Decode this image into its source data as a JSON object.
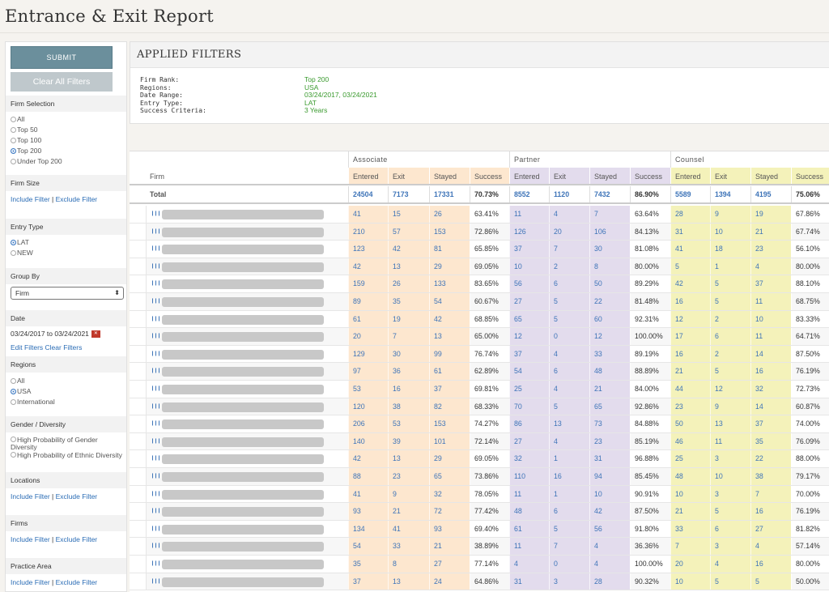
{
  "page": {
    "title": "Entrance & Exit Report"
  },
  "sidebar": {
    "submit_label": "SUBMIT",
    "clear_label": "Clear All Filters",
    "firm_selection": {
      "title": "Firm Selection",
      "options": [
        "All",
        "Top 50",
        "Top 100",
        "Top 200",
        "Under Top 200"
      ],
      "selected": "Top 200"
    },
    "firm_size": {
      "title": "Firm Size"
    },
    "include_filter": "Include Filter",
    "exclude_filter": "Exclude Filter",
    "separator": "|",
    "entry_type": {
      "title": "Entry Type",
      "options": [
        "LAT",
        "NEW"
      ],
      "selected": "LAT"
    },
    "group_by": {
      "title": "Group By",
      "value": "Firm"
    },
    "date": {
      "title": "Date",
      "range": "03/24/2017 to 03/24/2021",
      "edit_filters": "Edit Filters",
      "clear_filters": "Clear Filters"
    },
    "regions": {
      "title": "Regions",
      "options": [
        "All",
        "USA",
        "International"
      ],
      "selected": "USA"
    },
    "gender": {
      "title": "Gender / Diversity",
      "options": [
        "High Probability of Gender Diversity",
        "High Probability of Ethnic Diversity"
      ]
    },
    "locations": {
      "title": "Locations"
    },
    "firms": {
      "title": "Firms"
    },
    "practice_area": {
      "title": "Practice Area"
    }
  },
  "filters": {
    "title": "APPLIED FILTERS",
    "rows": [
      {
        "label": "Firm Rank:",
        "value": "Top 200"
      },
      {
        "label": "Regions:",
        "value": "USA"
      },
      {
        "label": "Date Range:",
        "value": "03/24/2017,   03/24/2021"
      },
      {
        "label": "Entry Type:",
        "value": "LAT"
      },
      {
        "label": "Success Criteria:",
        "value": "3 Years"
      }
    ]
  },
  "table": {
    "firm_header": "Firm",
    "groups": [
      "Associate",
      "Partner",
      "Counsel"
    ],
    "columns": [
      "Entered",
      "Exit",
      "Stayed",
      "Success"
    ],
    "total_label": "Total",
    "total": [
      "24504",
      "7173",
      "17331",
      "70.73%",
      "8552",
      "1120",
      "7432",
      "86.90%",
      "5589",
      "1394",
      "4195",
      "75.06%"
    ],
    "rows": [
      [
        "41",
        "15",
        "26",
        "63.41%",
        "11",
        "4",
        "7",
        "63.64%",
        "28",
        "9",
        "19",
        "67.86%"
      ],
      [
        "210",
        "57",
        "153",
        "72.86%",
        "126",
        "20",
        "106",
        "84.13%",
        "31",
        "10",
        "21",
        "67.74%"
      ],
      [
        "123",
        "42",
        "81",
        "65.85%",
        "37",
        "7",
        "30",
        "81.08%",
        "41",
        "18",
        "23",
        "56.10%"
      ],
      [
        "42",
        "13",
        "29",
        "69.05%",
        "10",
        "2",
        "8",
        "80.00%",
        "5",
        "1",
        "4",
        "80.00%"
      ],
      [
        "159",
        "26",
        "133",
        "83.65%",
        "56",
        "6",
        "50",
        "89.29%",
        "42",
        "5",
        "37",
        "88.10%"
      ],
      [
        "89",
        "35",
        "54",
        "60.67%",
        "27",
        "5",
        "22",
        "81.48%",
        "16",
        "5",
        "11",
        "68.75%"
      ],
      [
        "61",
        "19",
        "42",
        "68.85%",
        "65",
        "5",
        "60",
        "92.31%",
        "12",
        "2",
        "10",
        "83.33%"
      ],
      [
        "20",
        "7",
        "13",
        "65.00%",
        "12",
        "0",
        "12",
        "100.00%",
        "17",
        "6",
        "11",
        "64.71%"
      ],
      [
        "129",
        "30",
        "99",
        "76.74%",
        "37",
        "4",
        "33",
        "89.19%",
        "16",
        "2",
        "14",
        "87.50%"
      ],
      [
        "97",
        "36",
        "61",
        "62.89%",
        "54",
        "6",
        "48",
        "88.89%",
        "21",
        "5",
        "16",
        "76.19%"
      ],
      [
        "53",
        "16",
        "37",
        "69.81%",
        "25",
        "4",
        "21",
        "84.00%",
        "44",
        "12",
        "32",
        "72.73%"
      ],
      [
        "120",
        "38",
        "82",
        "68.33%",
        "70",
        "5",
        "65",
        "92.86%",
        "23",
        "9",
        "14",
        "60.87%"
      ],
      [
        "206",
        "53",
        "153",
        "74.27%",
        "86",
        "13",
        "73",
        "84.88%",
        "50",
        "13",
        "37",
        "74.00%"
      ],
      [
        "140",
        "39",
        "101",
        "72.14%",
        "27",
        "4",
        "23",
        "85.19%",
        "46",
        "11",
        "35",
        "76.09%"
      ],
      [
        "42",
        "13",
        "29",
        "69.05%",
        "32",
        "1",
        "31",
        "96.88%",
        "25",
        "3",
        "22",
        "88.00%"
      ],
      [
        "88",
        "23",
        "65",
        "73.86%",
        "110",
        "16",
        "94",
        "85.45%",
        "48",
        "10",
        "38",
        "79.17%"
      ],
      [
        "41",
        "9",
        "32",
        "78.05%",
        "11",
        "1",
        "10",
        "90.91%",
        "10",
        "3",
        "7",
        "70.00%"
      ],
      [
        "93",
        "21",
        "72",
        "77.42%",
        "48",
        "6",
        "42",
        "87.50%",
        "21",
        "5",
        "16",
        "76.19%"
      ],
      [
        "134",
        "41",
        "93",
        "69.40%",
        "61",
        "5",
        "56",
        "91.80%",
        "33",
        "6",
        "27",
        "81.82%"
      ],
      [
        "54",
        "33",
        "21",
        "38.89%",
        "11",
        "7",
        "4",
        "36.36%",
        "7",
        "3",
        "4",
        "57.14%"
      ],
      [
        "35",
        "8",
        "27",
        "77.14%",
        "4",
        "0",
        "4",
        "100.00%",
        "20",
        "4",
        "16",
        "80.00%"
      ],
      [
        "37",
        "13",
        "24",
        "64.86%",
        "31",
        "3",
        "28",
        "90.32%",
        "10",
        "5",
        "5",
        "50.00%"
      ]
    ]
  },
  "colors": {
    "associate": "#fde7cf",
    "partner": "#e3dced",
    "counsel": "#f4f2ba",
    "link": "#2a6cb5",
    "value_green": "#3a9a2e"
  }
}
